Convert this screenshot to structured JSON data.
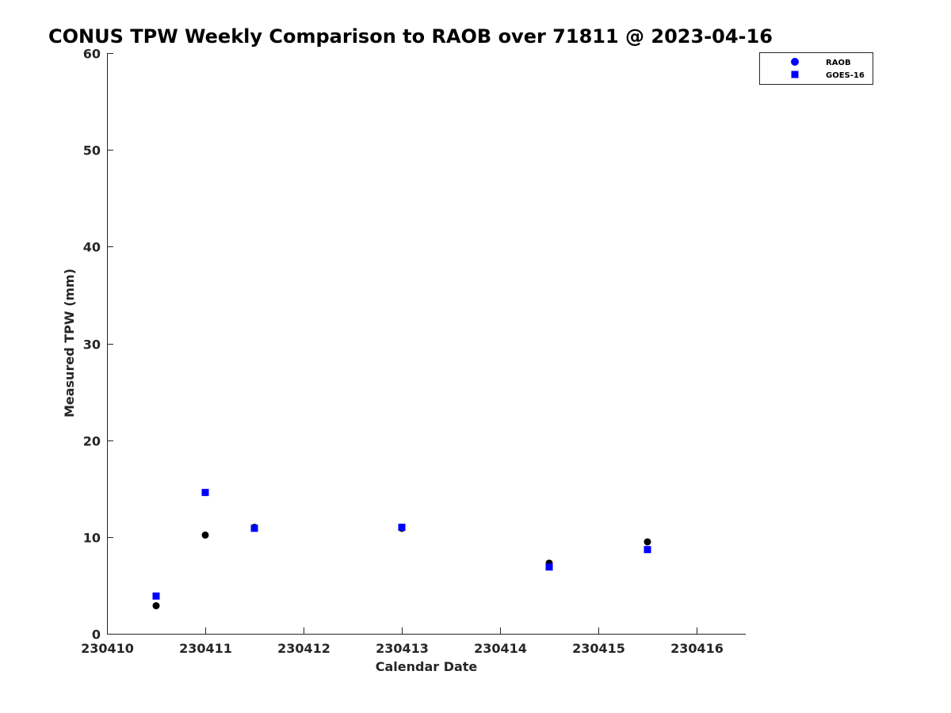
{
  "chart_data": {
    "type": "scatter",
    "title": "CONUS TPW Weekly Comparison to RAOB over 71811 @ 2023-04-16",
    "xlabel": "Calendar Date",
    "ylabel": "Measured TPW (mm)",
    "xlim": [
      230410,
      230416.5
    ],
    "ylim": [
      0,
      60
    ],
    "xticks": [
      230410,
      230411,
      230412,
      230413,
      230414,
      230415,
      230416
    ],
    "yticks": [
      0,
      10,
      20,
      30,
      40,
      50,
      60
    ],
    "grid": false,
    "legend_position": "top-right (outside)",
    "series": [
      {
        "name": "RAOB",
        "marker": "circle",
        "color": "#000000",
        "legend_color": "#0000ff",
        "x": [
          230410.5,
          230411,
          230411.5,
          230413,
          230414.5,
          230415.5
        ],
        "y": [
          2.9,
          10.2,
          11.0,
          10.9,
          7.3,
          9.5
        ]
      },
      {
        "name": "GOES-16",
        "marker": "square",
        "color": "#0000ff",
        "legend_color": "#0000ff",
        "x": [
          230410.5,
          230411,
          230411.5,
          230413,
          230414.5,
          230415.5
        ],
        "y": [
          3.9,
          14.6,
          10.9,
          11.0,
          6.9,
          8.7
        ]
      }
    ]
  }
}
